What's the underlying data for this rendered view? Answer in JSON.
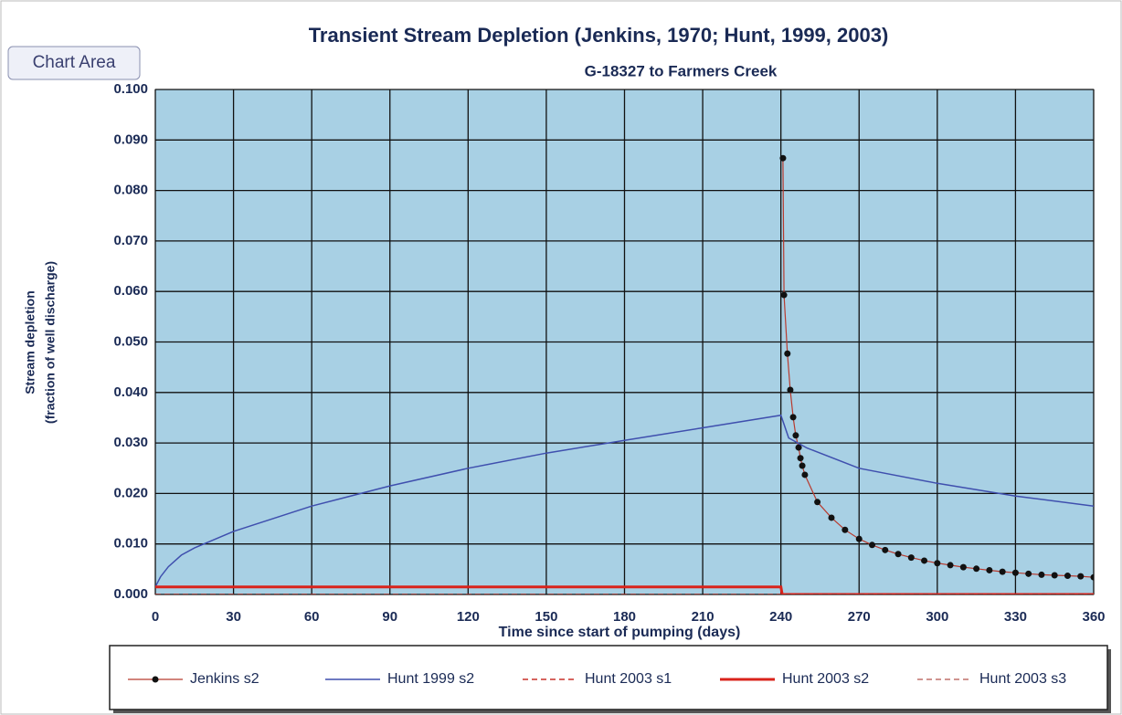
{
  "tooltip": "Chart Area",
  "chart_data": {
    "type": "line",
    "title": "Transient Stream Depletion (Jenkins, 1970; Hunt, 1999, 2003)",
    "subtitle": "G-18327 to Farmers Creek",
    "xlabel": "Time since start of pumping (days)",
    "ylabel": [
      "Stream depletion",
      "(fraction of well discharge)"
    ],
    "xlim": [
      0,
      360
    ],
    "xticks": [
      0,
      30,
      60,
      90,
      120,
      150,
      180,
      210,
      240,
      270,
      300,
      330,
      360
    ],
    "ylim": [
      0,
      0.1
    ],
    "yticks": [
      {
        "value": 0,
        "label": "0.000"
      },
      {
        "value": 0.01,
        "label": "0.010"
      },
      {
        "value": 0.02,
        "label": "0.020"
      },
      {
        "value": 0.03,
        "label": "0.030"
      },
      {
        "value": 0.04,
        "label": "0.040"
      },
      {
        "value": 0.05,
        "label": "0.050"
      },
      {
        "value": 0.06,
        "label": "0.060"
      },
      {
        "value": 0.07,
        "label": "0.070"
      },
      {
        "value": 0.08,
        "label": "0.080"
      },
      {
        "value": 0.09,
        "label": "0.090"
      },
      {
        "value": 0.1,
        "label": "0.100"
      }
    ],
    "grid": true,
    "background": "#a8d0e4",
    "legend": "bottom",
    "series": [
      {
        "name": "Jenkins s2",
        "color": "#b83a2e",
        "marker": true,
        "dash": false,
        "line_width": 1.2,
        "x": [
          240.8,
          241.2,
          242.5,
          243.6,
          244.7,
          245.7,
          246.8,
          247.5,
          248.2,
          249.2,
          254,
          259.4,
          264.6,
          270,
          275,
          280,
          285,
          290,
          295,
          300,
          305,
          310,
          315,
          320,
          325,
          330,
          335,
          340,
          345,
          350,
          355,
          360
        ],
        "values": [
          0.0864,
          0.0593,
          0.0477,
          0.0405,
          0.0351,
          0.0315,
          0.0291,
          0.027,
          0.0255,
          0.0237,
          0.0183,
          0.0152,
          0.0128,
          0.011,
          0.0098,
          0.0088,
          0.008,
          0.0073,
          0.0067,
          0.0062,
          0.0058,
          0.0054,
          0.0051,
          0.0048,
          0.0045,
          0.0043,
          0.0041,
          0.0039,
          0.0038,
          0.0037,
          0.0036,
          0.0034
        ]
      },
      {
        "name": "Hunt 1999 s2",
        "color": "#3f4fae",
        "marker": false,
        "dash": false,
        "line_width": 1.5,
        "x": [
          0,
          2,
          5,
          10,
          15,
          30,
          60,
          90,
          120,
          150,
          180,
          210,
          240,
          243,
          250,
          270,
          300,
          330,
          360
        ],
        "values": [
          0.0015,
          0.0035,
          0.0055,
          0.0078,
          0.0092,
          0.0125,
          0.0175,
          0.0215,
          0.025,
          0.028,
          0.0305,
          0.033,
          0.0355,
          0.031,
          0.029,
          0.025,
          0.022,
          0.0195,
          0.0175
        ]
      },
      {
        "name": "Hunt 2003 s1",
        "color": "#c8302a",
        "marker": false,
        "dash": true,
        "line_width": 1.5,
        "x": [
          0,
          240,
          240.5,
          360
        ],
        "values": [
          0,
          0,
          0,
          0
        ]
      },
      {
        "name": "Hunt 2003 s2",
        "color": "#d9231b",
        "marker": false,
        "dash": false,
        "line_width": 3,
        "x": [
          0,
          240,
          240.5,
          360
        ],
        "values": [
          0.0015,
          0.0015,
          0,
          0
        ]
      },
      {
        "name": "Hunt 2003 s3",
        "color": "#a02820",
        "marker": false,
        "dash": true,
        "line_width": 1,
        "x": [
          0,
          240,
          240.5,
          360
        ],
        "values": [
          0,
          0,
          0,
          0
        ]
      }
    ]
  }
}
